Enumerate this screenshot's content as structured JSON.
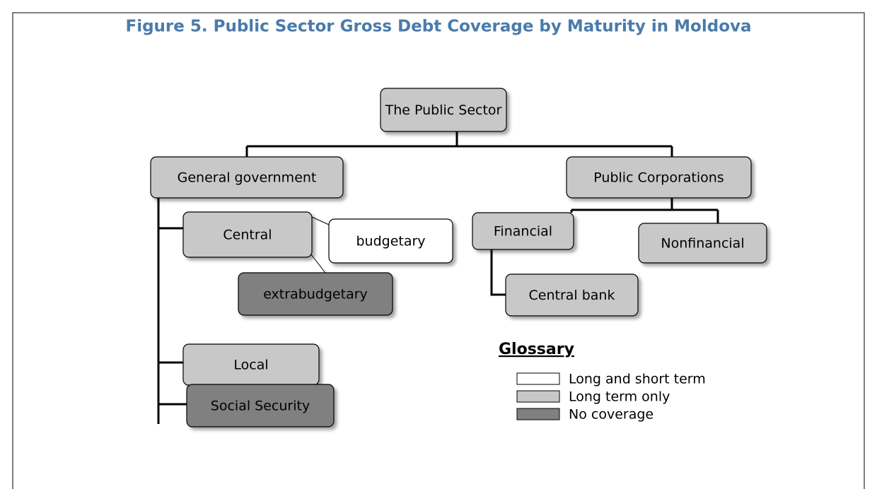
{
  "title": "Figure 5. Public Sector Gross Debt Coverage by Maturity in Moldova",
  "nodes": [
    {
      "label": "The Public Sector",
      "coverage": "Long term only"
    },
    {
      "label": "General government",
      "coverage": "Long term only"
    },
    {
      "label": "Public Corporations",
      "coverage": "Long term only"
    },
    {
      "label": "Central",
      "coverage": "Long term only"
    },
    {
      "label": "budgetary",
      "coverage": "Long and short term"
    },
    {
      "label": "extrabudgetary",
      "coverage": "No coverage"
    },
    {
      "label": "Financial",
      "coverage": "Long term only"
    },
    {
      "label": "Nonfinancial",
      "coverage": "Long term only"
    },
    {
      "label": "Central bank",
      "coverage": "Long term only"
    },
    {
      "label": "Local",
      "coverage": "Long term only"
    },
    {
      "label": "Social Security",
      "coverage": "No coverage"
    }
  ],
  "glossary": {
    "title": "Glossary",
    "items": [
      {
        "label": "Long and short term",
        "color": "#ffffff"
      },
      {
        "label": "Long term only",
        "color": "#c8c8c8"
      },
      {
        "label": "No coverage",
        "color": "#808080"
      }
    ]
  }
}
